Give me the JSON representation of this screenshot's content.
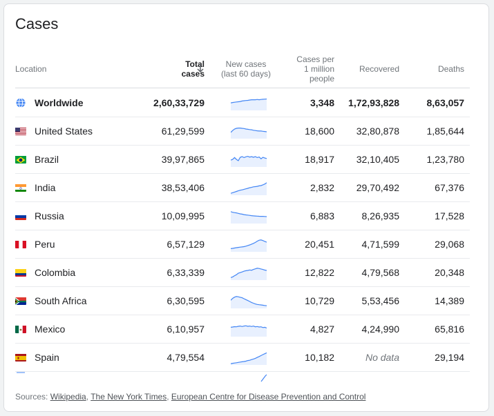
{
  "title": "Cases",
  "headers": {
    "location": "Location",
    "total": [
      "Total",
      "cases"
    ],
    "new_cases": [
      "New cases",
      "(last 60 days)"
    ],
    "cases_per_million": [
      "Cases per",
      "1 million",
      "people"
    ],
    "recovered": "Recovered",
    "deaths": "Deaths"
  },
  "colors": {
    "spark_line": "#4285f4",
    "spark_fill": "#e8f0fe"
  },
  "rows": [
    {
      "name": "Worldwide",
      "icon": "globe-icon",
      "total": "2,60,33,729",
      "cpm": "3,348",
      "recovered": "1,72,93,828",
      "deaths": "8,63,057",
      "trend": [
        0.55,
        0.58,
        0.6,
        0.62,
        0.64,
        0.66,
        0.7,
        0.72,
        0.74,
        0.75,
        0.78,
        0.8,
        0.8,
        0.8,
        0.82,
        0.8,
        0.82,
        0.84,
        0.85,
        0.86
      ]
    },
    {
      "name": "United States",
      "icon": "flag-us-icon",
      "total": "61,29,599",
      "cpm": "18,600",
      "recovered": "32,80,878",
      "deaths": "1,85,644",
      "trend": [
        0.45,
        0.6,
        0.72,
        0.78,
        0.8,
        0.8,
        0.78,
        0.76,
        0.72,
        0.7,
        0.68,
        0.66,
        0.62,
        0.6,
        0.58,
        0.56,
        0.56,
        0.54,
        0.52,
        0.5
      ]
    },
    {
      "name": "Brazil",
      "icon": "flag-br-icon",
      "total": "39,97,865",
      "cpm": "18,917",
      "recovered": "32,10,405",
      "deaths": "1,23,780",
      "trend": [
        0.5,
        0.55,
        0.7,
        0.55,
        0.45,
        0.72,
        0.78,
        0.7,
        0.76,
        0.8,
        0.74,
        0.78,
        0.72,
        0.78,
        0.7,
        0.75,
        0.6,
        0.72,
        0.66,
        0.62
      ]
    },
    {
      "name": "India",
      "icon": "flag-in-icon",
      "total": "38,53,406",
      "cpm": "2,832",
      "recovered": "29,70,492",
      "deaths": "67,376",
      "trend": [
        0.1,
        0.15,
        0.2,
        0.25,
        0.3,
        0.35,
        0.38,
        0.42,
        0.46,
        0.5,
        0.55,
        0.58,
        0.62,
        0.64,
        0.66,
        0.7,
        0.72,
        0.78,
        0.85,
        0.95
      ]
    },
    {
      "name": "Russia",
      "icon": "flag-ru-icon",
      "total": "10,09,995",
      "cpm": "6,883",
      "recovered": "8,26,935",
      "deaths": "17,528",
      "trend": [
        0.9,
        0.85,
        0.82,
        0.8,
        0.76,
        0.72,
        0.7,
        0.66,
        0.64,
        0.62,
        0.6,
        0.58,
        0.56,
        0.55,
        0.54,
        0.53,
        0.52,
        0.52,
        0.51,
        0.5
      ]
    },
    {
      "name": "Peru",
      "icon": "flag-pe-icon",
      "total": "6,57,129",
      "cpm": "20,451",
      "recovered": "4,71,599",
      "deaths": "29,068",
      "trend": [
        0.2,
        0.22,
        0.25,
        0.28,
        0.3,
        0.32,
        0.34,
        0.36,
        0.4,
        0.45,
        0.5,
        0.56,
        0.62,
        0.7,
        0.8,
        0.88,
        0.9,
        0.85,
        0.78,
        0.72
      ]
    },
    {
      "name": "Colombia",
      "icon": "flag-co-icon",
      "total": "6,33,339",
      "cpm": "12,822",
      "recovered": "4,79,568",
      "deaths": "20,348",
      "trend": [
        0.15,
        0.2,
        0.3,
        0.38,
        0.5,
        0.55,
        0.6,
        0.66,
        0.7,
        0.72,
        0.76,
        0.74,
        0.8,
        0.85,
        0.9,
        0.88,
        0.84,
        0.8,
        0.75,
        0.72
      ]
    },
    {
      "name": "South Africa",
      "icon": "flag-za-icon",
      "total": "6,30,595",
      "cpm": "10,729",
      "recovered": "5,53,456",
      "deaths": "14,389",
      "trend": [
        0.6,
        0.75,
        0.85,
        0.9,
        0.88,
        0.84,
        0.8,
        0.72,
        0.65,
        0.58,
        0.5,
        0.42,
        0.36,
        0.3,
        0.26,
        0.24,
        0.22,
        0.2,
        0.18,
        0.16
      ]
    },
    {
      "name": "Mexico",
      "icon": "flag-mx-icon",
      "total": "6,10,957",
      "cpm": "4,827",
      "recovered": "4,24,990",
      "deaths": "65,816",
      "trend": [
        0.7,
        0.72,
        0.75,
        0.74,
        0.78,
        0.8,
        0.76,
        0.8,
        0.82,
        0.78,
        0.8,
        0.76,
        0.8,
        0.74,
        0.76,
        0.72,
        0.74,
        0.68,
        0.7,
        0.64
      ]
    },
    {
      "name": "Spain",
      "icon": "flag-es-icon",
      "total": "4,79,554",
      "cpm": "10,182",
      "recovered": "No data",
      "deaths": "29,194",
      "trend": [
        0.05,
        0.08,
        0.1,
        0.12,
        0.15,
        0.18,
        0.2,
        0.22,
        0.25,
        0.3,
        0.32,
        0.38,
        0.42,
        0.48,
        0.55,
        0.62,
        0.7,
        0.78,
        0.85,
        0.92
      ]
    }
  ],
  "footer": {
    "prefix": "Sources: ",
    "sources": [
      "Wikipedia",
      "The New York Times",
      "European Centre for Disease Prevention and Control"
    ]
  }
}
